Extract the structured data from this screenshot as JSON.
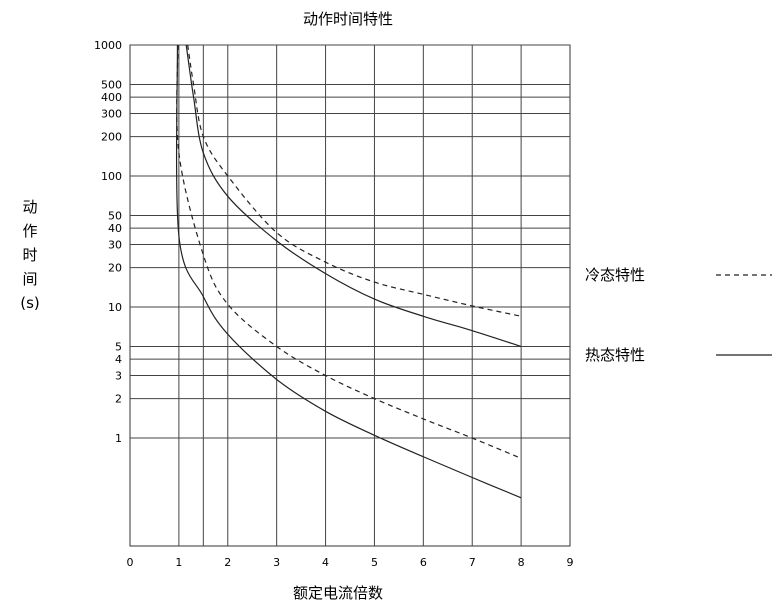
{
  "chart_data": {
    "type": "line",
    "title": "动作时间特性",
    "xlabel": "额定电流倍数",
    "ylabel_chars": [
      "动",
      "作",
      "时",
      "间",
      "(s)"
    ],
    "xlim": [
      0,
      9
    ],
    "x_ticks": [
      "0",
      "1",
      "2",
      "3",
      "4",
      "5",
      "6",
      "7",
      "8",
      "9"
    ],
    "x_gridlines": [
      1,
      1.5,
      2,
      3,
      4,
      5,
      6,
      7,
      8
    ],
    "ylim": [
      0.15,
      1000
    ],
    "y_scale": "log",
    "y_ticks": [
      1000,
      500,
      400,
      300,
      200,
      100,
      50,
      40,
      30,
      20,
      10,
      5,
      4,
      3,
      2,
      1
    ],
    "grid": true,
    "legend_position": "right",
    "series": [
      {
        "name": "冷态特性",
        "style": "dashed",
        "points": [
          [
            1.18,
            1000
          ],
          [
            1.3,
            500
          ],
          [
            1.5,
            200
          ],
          [
            2,
            100
          ],
          [
            3,
            37
          ],
          [
            4,
            22
          ],
          [
            5,
            15.5
          ],
          [
            6,
            12.5
          ],
          [
            7,
            10.2
          ],
          [
            8,
            8.5
          ]
        ]
      },
      {
        "name": "热态特性",
        "style": "solid",
        "points": [
          [
            1.15,
            1000
          ],
          [
            1.3,
            400
          ],
          [
            1.5,
            150
          ],
          [
            2,
            70
          ],
          [
            3,
            32
          ],
          [
            4,
            18
          ],
          [
            5,
            11.5
          ],
          [
            6,
            8.5
          ],
          [
            7,
            6.6
          ],
          [
            8,
            5
          ]
        ]
      },
      {
        "name": "冷态特性",
        "style": "dashed",
        "points": [
          [
            0.98,
            1000
          ],
          [
            1.0,
            150
          ],
          [
            1.5,
            25
          ],
          [
            2,
            10.5
          ],
          [
            3,
            5
          ],
          [
            4,
            3
          ],
          [
            5,
            2
          ],
          [
            6,
            1.4
          ],
          [
            7,
            1
          ],
          [
            8,
            0.7
          ]
        ]
      },
      {
        "name": "热态特性",
        "style": "solid",
        "points": [
          [
            0.97,
            1000
          ],
          [
            1.0,
            35
          ],
          [
            1.5,
            12
          ],
          [
            2,
            6.2
          ],
          [
            3,
            2.8
          ],
          [
            4,
            1.6
          ],
          [
            5,
            1.05
          ],
          [
            6,
            0.72
          ],
          [
            7,
            0.5
          ],
          [
            8,
            0.35
          ]
        ]
      }
    ],
    "legend": [
      {
        "label": "冷态特性",
        "style": "dashed"
      },
      {
        "label": "热态特性",
        "style": "solid"
      }
    ]
  }
}
